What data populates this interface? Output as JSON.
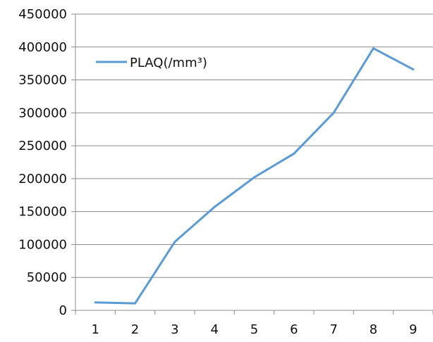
{
  "chart_data": {
    "type": "line",
    "title": "",
    "xlabel": "",
    "ylabel": "",
    "categories": [
      "1",
      "2",
      "3",
      "4",
      "5",
      "6",
      "7",
      "8",
      "9"
    ],
    "series": [
      {
        "name": "PLAQ(/mm³)",
        "values": [
          12000,
          10500,
          104000,
          157000,
          202000,
          238000,
          300000,
          398000,
          366000
        ],
        "color": "#5B9BD5"
      }
    ],
    "ylim": [
      0,
      450000
    ],
    "yticks": [
      "0",
      "50000",
      "100000",
      "150000",
      "200000",
      "250000",
      "300000",
      "350000",
      "400000",
      "450000"
    ],
    "grid": "horizontal",
    "legend": "top-left, inside plot"
  }
}
